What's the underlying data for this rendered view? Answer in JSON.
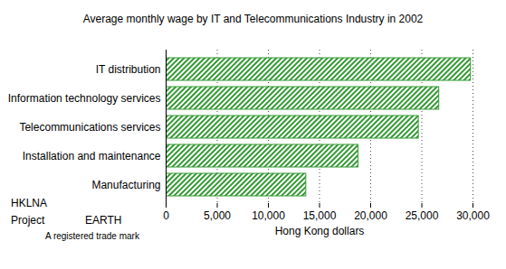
{
  "chart_data": {
    "type": "bar",
    "orientation": "horizontal",
    "title": "Average monthly wage by IT and Telecommunications Industry in 2002",
    "x_label": "Hong Kong dollars",
    "categories": [
      "IT distribution",
      "Information technology services",
      "Telecommunications services",
      "Installation and maintenance",
      "Manufacturing"
    ],
    "values": [
      29800,
      26700,
      24700,
      18800,
      13700
    ],
    "color": "#339933",
    "xlim": [
      0,
      30000
    ],
    "xticks": [
      0,
      {
        "value": 5000,
        "label": "5,000"
      },
      {
        "value": 10000,
        "label": "10,000"
      },
      {
        "value": 15000,
        "label": "15,000"
      },
      {
        "value": 20000,
        "label": "20,000"
      },
      {
        "value": 25000,
        "label": "25,000"
      },
      {
        "value": 30000,
        "label": "30,000"
      }
    ],
    "grid": true,
    "annotations": [
      "HKLNA",
      "Project",
      "EARTH",
      "A registered trade mark"
    ]
  }
}
